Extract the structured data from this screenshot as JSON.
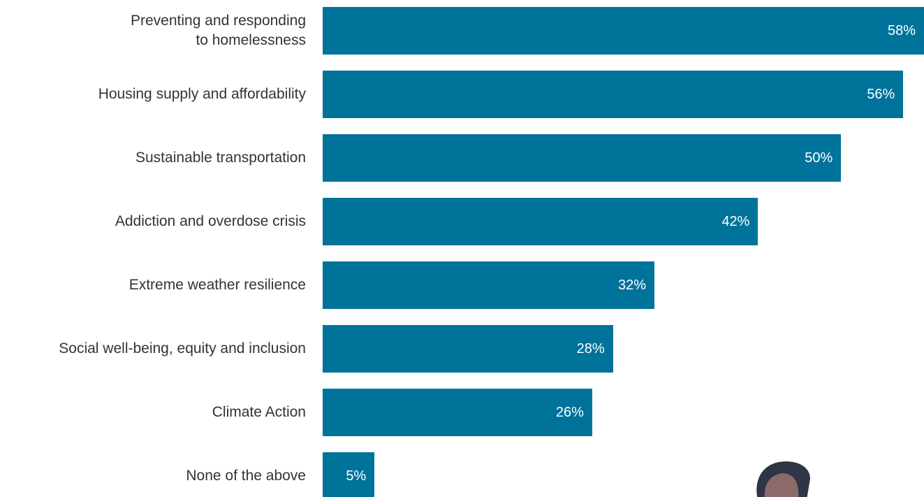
{
  "chart_data": {
    "type": "barh",
    "categories": [
      "Preventing and responding\nto homelessness",
      "Housing supply and affordability",
      "Sustainable transportation",
      "Addiction and overdose crisis",
      "Extreme weather resilience",
      "Social well-being, equity and inclusion",
      "Climate Action",
      "None of the above"
    ],
    "values": [
      58,
      56,
      50,
      42,
      32,
      28,
      26,
      5
    ],
    "value_labels": [
      "58%",
      "56%",
      "50%",
      "42%",
      "32%",
      "28%",
      "26%",
      "5%"
    ],
    "color": "#00739a"
  }
}
